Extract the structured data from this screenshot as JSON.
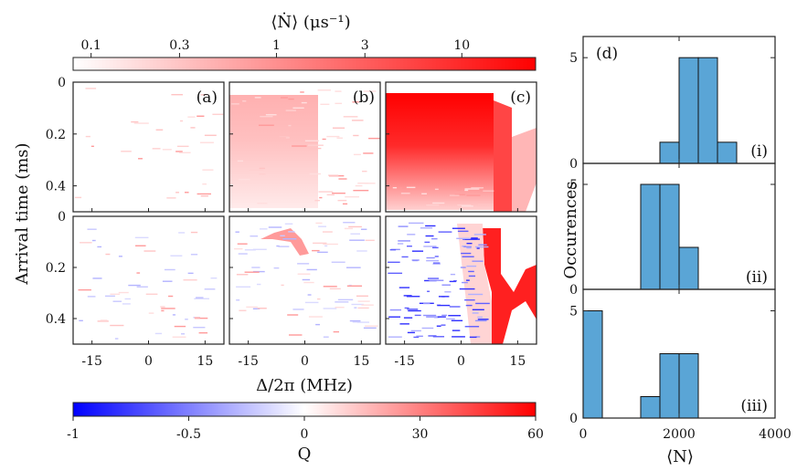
{
  "top_colorbar": {
    "label": "⟨Ṅ⟩ (μs⁻¹)",
    "ticks": [
      "0.1",
      "0.3",
      "1",
      "3",
      "10"
    ],
    "tick_values": [
      0.1,
      0.3,
      1,
      3,
      10
    ],
    "range": [
      0.08,
      25
    ],
    "scale": "log",
    "colors": [
      "#ffffff",
      "#ff0000"
    ]
  },
  "bottom_colorbar": {
    "label": "Q",
    "ticks": [
      "-1",
      "-0.5",
      "0",
      "30",
      "60"
    ],
    "tick_values": [
      -1,
      -0.5,
      0,
      30,
      60
    ],
    "colors": [
      "#0000ff",
      "#ffffff",
      "#ff0000"
    ]
  },
  "heatmaps": {
    "ylabel": "Arrival time (ms)",
    "xlabel": "Δ/2π (MHz)",
    "yticks": [
      "0",
      "0.2",
      "0.4"
    ],
    "ytick_values": [
      0,
      0.2,
      0.4
    ],
    "xticks": [
      "-15",
      "0",
      "15"
    ],
    "xtick_values": [
      -15,
      0,
      15
    ],
    "xlim": [
      -20,
      20
    ],
    "ylim": [
      0,
      0.5
    ],
    "panel_labels": [
      "(a)",
      "(b)",
      "(c)"
    ]
  },
  "histograms": {
    "panel_label": "(d)",
    "ylabel": "Occurences",
    "xlabel": "⟨N⟩",
    "xticks": [
      "0",
      "2000",
      "4000"
    ],
    "xtick_values": [
      0,
      2000,
      4000
    ],
    "yticks": [
      "0",
      "5"
    ],
    "ytick_values": [
      0,
      5
    ],
    "bar_color": "#5aa5d6"
  },
  "chart_data": [
    {
      "type": "heatmap",
      "description_key": "top row, color = mean detection rate",
      "panels": [
        "(a)",
        "(b)",
        "(c)"
      ],
      "xlim": [
        -20,
        20
      ],
      "ylim": [
        0,
        0.5
      ],
      "color_scale": "log",
      "color_range": [
        0.08,
        25
      ],
      "panel_b_rows": [
        {
          "y0": 0.05,
          "y1": 0.47,
          "x0": -20,
          "x1": 3,
          "value": 0.6
        }
      ],
      "panel_c_rows": [
        {
          "y0": 0.04,
          "y1": 0.5,
          "x0": -20,
          "x1": 8,
          "value": 6
        }
      ]
    },
    {
      "type": "heatmap",
      "description_key": "bottom row, color = Q",
      "panels": [
        "(a)",
        "(b)",
        "(c)"
      ],
      "xlim": [
        -20,
        20
      ],
      "ylim": [
        0,
        0.5
      ],
      "color_range": [
        -1,
        60
      ]
    },
    {
      "type": "bar",
      "name": "(i)",
      "bin_edges": [
        1600,
        2000,
        2400,
        2800,
        3200
      ],
      "values": [
        1,
        5,
        5,
        1
      ],
      "xlim": [
        0,
        4000
      ],
      "ylim": [
        0,
        6
      ]
    },
    {
      "type": "bar",
      "name": "(ii)",
      "bin_edges": [
        1200,
        1600,
        2000,
        2400
      ],
      "values": [
        5,
        5,
        2
      ],
      "xlim": [
        0,
        4000
      ],
      "ylim": [
        0,
        6
      ]
    },
    {
      "type": "bar",
      "name": "(iii)",
      "bin_edges": [
        0,
        400,
        1200,
        1600,
        2000,
        2400
      ],
      "values": [
        5,
        0,
        1,
        3,
        3
      ],
      "xlim": [
        0,
        4000
      ],
      "ylim": [
        0,
        6
      ]
    }
  ]
}
